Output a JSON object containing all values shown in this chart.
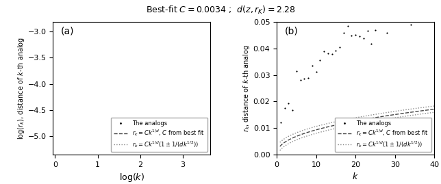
{
  "C": 0.0034,
  "d": 2.28,
  "title": "Best-fit $C = 0.0034$ ;  $d(z, r_K) = 2.28$",
  "panel_a": {
    "label": "(a)",
    "xlabel": "log($k$)",
    "ylabel": "log($r_k$), distance of $k$-th analog",
    "xlim": [
      -0.05,
      3.65
    ],
    "ylim": [
      -5.35,
      -2.82
    ],
    "yticks": [
      -5.0,
      -4.5,
      -4.0,
      -3.5,
      -3.0
    ],
    "xticks": [
      0,
      1,
      2,
      3
    ]
  },
  "panel_b": {
    "label": "(b)",
    "xlabel": "$k$",
    "ylabel": "$r_k$, distance of $k$-th analog",
    "xlim": [
      0,
      40
    ],
    "ylim": [
      0.0,
      0.05
    ],
    "yticks": [
      0.0,
      0.01,
      0.02,
      0.03,
      0.04,
      0.05
    ],
    "xticks": [
      0,
      10,
      20,
      30,
      40
    ]
  },
  "legend_entries": [
    "The analogs",
    "$r_k = Ck^{1/d}$, $C$ from best fit",
    "$r_k = Ck^{1/d}(1 \\pm 1/(dk^{1/2}))$"
  ],
  "scatter_color": "black",
  "dashed_color": "#444444",
  "dotted_color": "#888888",
  "scatter_size": 10,
  "n_scatter": 40,
  "C_scatter": 0.012,
  "d_scatter": 2.28
}
